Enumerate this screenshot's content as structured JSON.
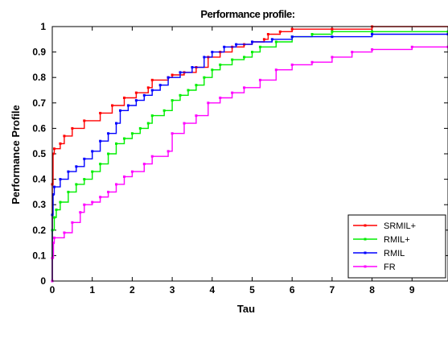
{
  "chart_data": {
    "type": "line",
    "title": "Performance profile:",
    "xlabel": "Tau",
    "ylabel": "Performance Profile",
    "xlim": [
      0,
      9.9
    ],
    "ylim": [
      0,
      1
    ],
    "xticks": [
      "0",
      "1",
      "2",
      "3",
      "4",
      "5",
      "6",
      "7",
      "8",
      "9"
    ],
    "yticks": [
      "0",
      "0.1",
      "0.2",
      "0.3",
      "0.4",
      "0.5",
      "0.6",
      "0.7",
      "0.8",
      "0.9",
      "1"
    ],
    "legend_position": "bottom-right",
    "series": [
      {
        "name": "SRMIL+",
        "color": "#ff0000",
        "points": [
          [
            0,
            0
          ],
          [
            0,
            0.38
          ],
          [
            0.02,
            0.5
          ],
          [
            0.05,
            0.52
          ],
          [
            0.2,
            0.54
          ],
          [
            0.3,
            0.57
          ],
          [
            0.5,
            0.6
          ],
          [
            0.8,
            0.63
          ],
          [
            1.2,
            0.66
          ],
          [
            1.5,
            0.69
          ],
          [
            1.8,
            0.72
          ],
          [
            2.1,
            0.74
          ],
          [
            2.4,
            0.76
          ],
          [
            2.5,
            0.79
          ],
          [
            2.9,
            0.8
          ],
          [
            3.0,
            0.81
          ],
          [
            3.3,
            0.82
          ],
          [
            3.6,
            0.84
          ],
          [
            3.9,
            0.88
          ],
          [
            4.2,
            0.9
          ],
          [
            4.5,
            0.92
          ],
          [
            4.8,
            0.93
          ],
          [
            5.0,
            0.94
          ],
          [
            5.3,
            0.95
          ],
          [
            5.4,
            0.97
          ],
          [
            5.7,
            0.98
          ],
          [
            6.0,
            0.99
          ],
          [
            7.0,
            0.99
          ],
          [
            8.0,
            1.0
          ]
        ]
      },
      {
        "name": "RMIL+",
        "color": "#00ee00",
        "points": [
          [
            0,
            0
          ],
          [
            0,
            0.2
          ],
          [
            0.05,
            0.25
          ],
          [
            0.1,
            0.28
          ],
          [
            0.2,
            0.31
          ],
          [
            0.4,
            0.35
          ],
          [
            0.6,
            0.38
          ],
          [
            0.8,
            0.4
          ],
          [
            1.0,
            0.43
          ],
          [
            1.2,
            0.46
          ],
          [
            1.4,
            0.5
          ],
          [
            1.6,
            0.54
          ],
          [
            1.8,
            0.56
          ],
          [
            2.0,
            0.58
          ],
          [
            2.2,
            0.6
          ],
          [
            2.4,
            0.62
          ],
          [
            2.5,
            0.65
          ],
          [
            2.8,
            0.67
          ],
          [
            3.0,
            0.71
          ],
          [
            3.2,
            0.73
          ],
          [
            3.4,
            0.75
          ],
          [
            3.6,
            0.77
          ],
          [
            3.8,
            0.8
          ],
          [
            4.0,
            0.83
          ],
          [
            4.2,
            0.85
          ],
          [
            4.5,
            0.87
          ],
          [
            4.8,
            0.88
          ],
          [
            5.0,
            0.9
          ],
          [
            5.2,
            0.92
          ],
          [
            5.6,
            0.94
          ],
          [
            6.0,
            0.96
          ],
          [
            6.5,
            0.97
          ],
          [
            7.0,
            0.98
          ],
          [
            8.0,
            0.98
          ],
          [
            9.9,
            0.98
          ]
        ]
      },
      {
        "name": "RMIL",
        "color": "#0000ff",
        "points": [
          [
            0,
            0
          ],
          [
            0,
            0.26
          ],
          [
            0.02,
            0.34
          ],
          [
            0.05,
            0.37
          ],
          [
            0.2,
            0.4
          ],
          [
            0.4,
            0.43
          ],
          [
            0.6,
            0.45
          ],
          [
            0.8,
            0.48
          ],
          [
            1.0,
            0.51
          ],
          [
            1.2,
            0.55
          ],
          [
            1.4,
            0.58
          ],
          [
            1.6,
            0.62
          ],
          [
            1.7,
            0.67
          ],
          [
            1.9,
            0.69
          ],
          [
            2.1,
            0.71
          ],
          [
            2.3,
            0.73
          ],
          [
            2.5,
            0.75
          ],
          [
            2.7,
            0.77
          ],
          [
            2.9,
            0.8
          ],
          [
            3.2,
            0.82
          ],
          [
            3.5,
            0.84
          ],
          [
            3.8,
            0.88
          ],
          [
            4.0,
            0.9
          ],
          [
            4.3,
            0.92
          ],
          [
            4.6,
            0.93
          ],
          [
            5.0,
            0.94
          ],
          [
            5.5,
            0.95
          ],
          [
            6.0,
            0.96
          ],
          [
            7.0,
            0.96
          ],
          [
            8.0,
            0.97
          ],
          [
            9.9,
            0.97
          ]
        ]
      },
      {
        "name": "FR",
        "color": "#ff00ff",
        "points": [
          [
            0,
            0
          ],
          [
            0,
            0.09
          ],
          [
            0.03,
            0.15
          ],
          [
            0.05,
            0.17
          ],
          [
            0.3,
            0.19
          ],
          [
            0.5,
            0.23
          ],
          [
            0.7,
            0.27
          ],
          [
            0.8,
            0.3
          ],
          [
            1.0,
            0.31
          ],
          [
            1.2,
            0.33
          ],
          [
            1.4,
            0.35
          ],
          [
            1.6,
            0.38
          ],
          [
            1.8,
            0.41
          ],
          [
            2.0,
            0.43
          ],
          [
            2.3,
            0.46
          ],
          [
            2.5,
            0.49
          ],
          [
            2.9,
            0.51
          ],
          [
            3.0,
            0.58
          ],
          [
            3.3,
            0.62
          ],
          [
            3.6,
            0.65
          ],
          [
            3.9,
            0.7
          ],
          [
            4.2,
            0.72
          ],
          [
            4.5,
            0.74
          ],
          [
            4.8,
            0.76
          ],
          [
            5.2,
            0.79
          ],
          [
            5.6,
            0.83
          ],
          [
            6.0,
            0.85
          ],
          [
            6.5,
            0.86
          ],
          [
            7.0,
            0.88
          ],
          [
            7.5,
            0.9
          ],
          [
            8.0,
            0.91
          ],
          [
            9.0,
            0.92
          ],
          [
            9.9,
            0.92
          ]
        ]
      }
    ]
  }
}
